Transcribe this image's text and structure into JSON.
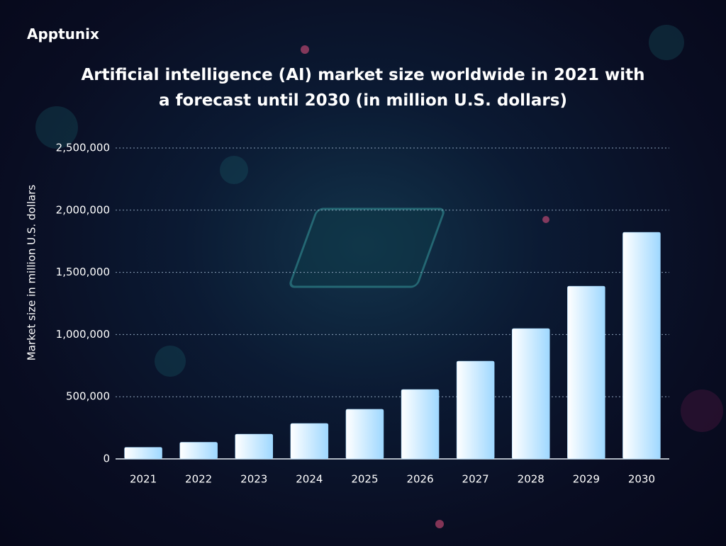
{
  "brand": "Apptunix",
  "chart_data": {
    "type": "bar",
    "title": "Artificial intelligence (AI) market size worldwide in 2021 with a forecast until 2030 (in million U.S. dollars)",
    "y_label": "Market size in million U.S. dollars",
    "categories": [
      "2021",
      "2022",
      "2023",
      "2024",
      "2025",
      "2026",
      "2027",
      "2028",
      "2029",
      "2030"
    ],
    "values": [
      93000,
      134000,
      199000,
      285000,
      399000,
      558000,
      786000,
      1048000,
      1389000,
      1822000
    ],
    "color": "#9fd8ff",
    "ylim": [
      0,
      2500000
    ],
    "yticks": [
      0,
      {
        "value": 500000,
        "label": "500,000"
      },
      {
        "value": 1000000,
        "label": "1,000,000"
      },
      {
        "value": 1500000,
        "label": "1,500,000"
      },
      {
        "value": 2000000,
        "label": "2,000,000"
      },
      {
        "value": 2500000,
        "label": "2,500,000"
      }
    ],
    "grid": true
  }
}
